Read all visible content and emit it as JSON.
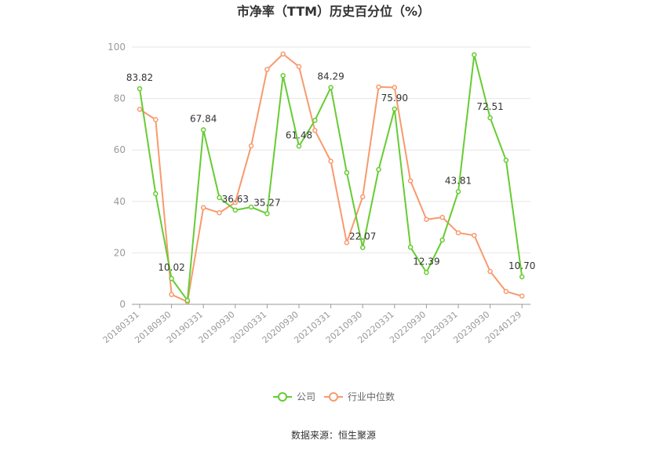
{
  "chart_data": {
    "type": "line",
    "title": "市净率（TTM）历史百分位（%）",
    "source": "数据来源：恒生聚源",
    "ylim": [
      0,
      100
    ],
    "y_ticks": [
      0,
      20,
      40,
      60,
      80,
      100
    ],
    "grid": true,
    "legend_position": "bottom",
    "x_tick_labels": [
      "20180331",
      "20180930",
      "20190331",
      "20190930",
      "20200331",
      "20200930",
      "20210331",
      "20210930",
      "20220331",
      "20220930",
      "20230331",
      "20230930",
      "20240129"
    ],
    "colors": {
      "company": "#66cc33",
      "industry": "#f79a6e",
      "grid": "#e6e6e6",
      "axis": "#999999"
    },
    "series": [
      {
        "name": "公司",
        "values": [
          83.82,
          43.0,
          10.02,
          1.5,
          67.84,
          41.5,
          36.63,
          37.8,
          35.27,
          88.9,
          61.48,
          71.5,
          84.29,
          51.2,
          22.07,
          52.4,
          75.9,
          22.2,
          12.39,
          25.0,
          43.81,
          97.0,
          72.51,
          56.0,
          10.7
        ],
        "data_labels": [
          "83.82",
          "",
          "10.02",
          "",
          "67.84",
          "",
          "36.63",
          "",
          "35.27",
          "",
          "61.48",
          "",
          "84.29",
          "",
          "22.07",
          "",
          "75.90",
          "",
          "12.39",
          "",
          "43.81",
          "",
          "72.51",
          "",
          "10.70"
        ]
      },
      {
        "name": "行业中位数",
        "values": [
          75.8,
          71.8,
          3.8,
          1.0,
          37.6,
          35.6,
          39.6,
          61.6,
          91.3,
          97.3,
          92.4,
          67.6,
          55.6,
          24.0,
          41.8,
          84.5,
          84.3,
          48.0,
          33.0,
          33.8,
          27.8,
          26.8,
          12.8,
          5.0,
          3.2
        ]
      }
    ]
  }
}
